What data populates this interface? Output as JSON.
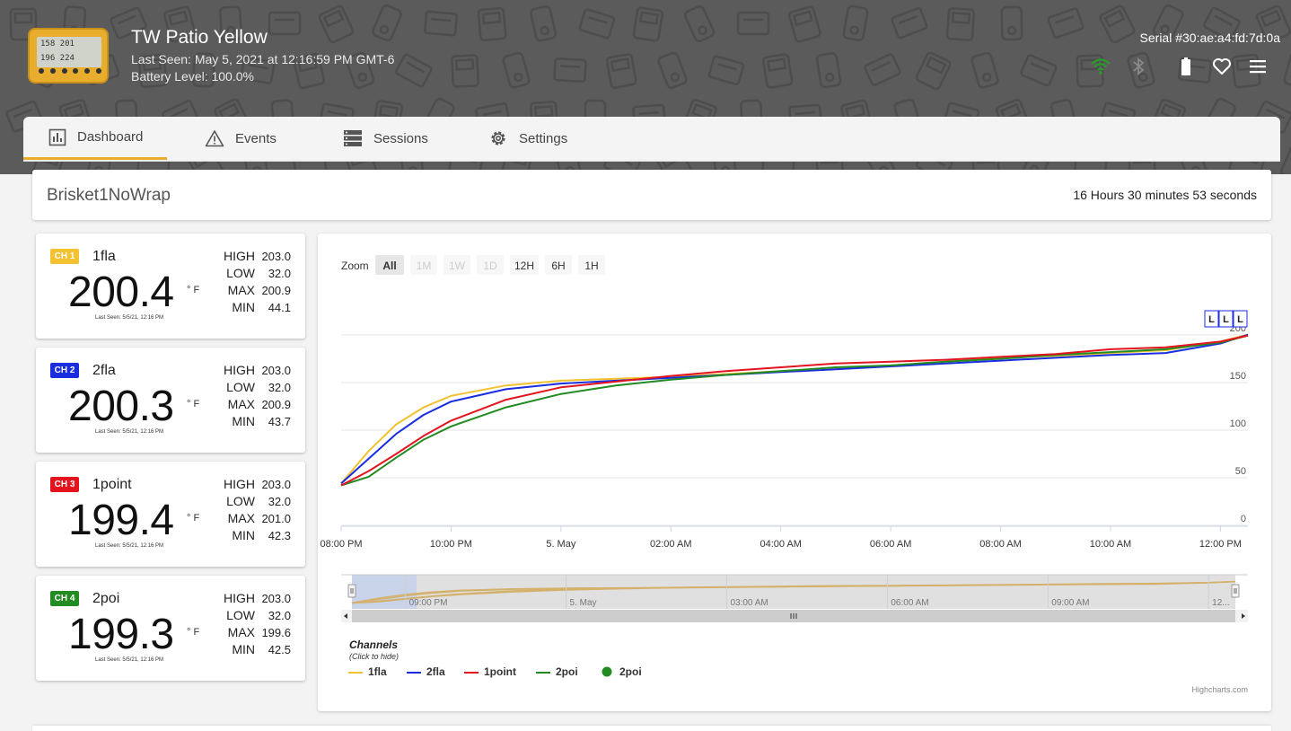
{
  "device": {
    "title": "TW Patio Yellow",
    "last_seen": "Last Seen: May 5, 2021 at 12:16:59 PM GMT-6",
    "battery": "Battery Level: 100.0%",
    "serial": "Serial #30:ae:a4:fd:7d:0a",
    "thumb_lines": [
      "158 201",
      "196 224"
    ]
  },
  "header_icons": [
    "wifi-icon",
    "bluetooth-icon",
    "battery-icon",
    "heart-icon",
    "menu-icon"
  ],
  "tabs": [
    {
      "label": "Dashboard",
      "icon": "bar-chart-icon",
      "active": true
    },
    {
      "label": "Events",
      "icon": "warning-icon",
      "active": false
    },
    {
      "label": "Sessions",
      "icon": "server-icon",
      "active": false
    },
    {
      "label": "Settings",
      "icon": "gear-icon",
      "active": false
    }
  ],
  "session": {
    "name": "Brisket1NoWrap",
    "duration": "16 Hours 30 minutes 53 seconds"
  },
  "channels": [
    {
      "badge": "CH 1",
      "color": "#f2c230",
      "name": "1fla",
      "temp": "200.4",
      "unit": "° F",
      "seen": "Last Seen: 5/5/21, 12:16 PM",
      "high": "203.0",
      "low": "32.0",
      "max": "200.9",
      "min": "44.1"
    },
    {
      "badge": "CH 2",
      "color": "#1a2ee0",
      "name": "2fla",
      "temp": "200.3",
      "unit": "° F",
      "seen": "Last Seen: 5/5/21, 12:16 PM",
      "high": "203.0",
      "low": "32.0",
      "max": "200.9",
      "min": "43.7"
    },
    {
      "badge": "CH 3",
      "color": "#e3141e",
      "name": "1point",
      "temp": "199.4",
      "unit": "° F",
      "seen": "Last Seen: 5/5/21, 12:16 PM",
      "high": "203.0",
      "low": "32.0",
      "max": "201.0",
      "min": "42.3"
    },
    {
      "badge": "CH 4",
      "color": "#228b22",
      "name": "2poi",
      "temp": "199.3",
      "unit": "° F",
      "seen": "Last Seen: 5/5/21, 12:16 PM",
      "high": "203.0",
      "low": "32.0",
      "max": "199.6",
      "min": "42.5"
    }
  ],
  "stat_labels": {
    "high": "HIGH",
    "low": "LOW",
    "max": "MAX",
    "min": "MIN"
  },
  "zoom": {
    "label": "Zoom",
    "buttons": [
      {
        "label": "All",
        "state": "selected"
      },
      {
        "label": "1M",
        "state": "disabled"
      },
      {
        "label": "1W",
        "state": "disabled"
      },
      {
        "label": "1D",
        "state": "disabled"
      },
      {
        "label": "12H",
        "state": "normal"
      },
      {
        "label": "6H",
        "state": "normal"
      },
      {
        "label": "1H",
        "state": "normal"
      }
    ]
  },
  "chart_data": {
    "type": "line",
    "title": "",
    "xlabel": "",
    "ylabel": "",
    "x": [
      0,
      0.5,
      1,
      1.5,
      2,
      3,
      4,
      5,
      6,
      7,
      8,
      9,
      10,
      11,
      12,
      13,
      14,
      15,
      16,
      16.5
    ],
    "xticks": [
      "08:00 PM",
      "10:00 PM",
      "5. May",
      "02:00 AM",
      "04:00 AM",
      "06:00 AM",
      "08:00 AM",
      "10:00 AM",
      "12:00 PM"
    ],
    "xtick_hours": [
      0,
      2,
      4,
      6,
      8,
      10,
      12,
      14,
      16
    ],
    "yticks": [
      "0",
      "50",
      "100",
      "150",
      "200"
    ],
    "ylim": [
      0,
      250
    ],
    "grid": true,
    "series": [
      {
        "name": "1fla",
        "color": "#f2c230",
        "values": [
          44,
          78,
          106,
          124,
          136,
          147,
          152,
          154,
          156,
          159,
          162,
          165,
          168,
          172,
          176,
          178,
          181,
          184,
          193,
          200.4
        ]
      },
      {
        "name": "2fla",
        "color": "#1a2ee0",
        "values": [
          44,
          70,
          96,
          116,
          130,
          143,
          149,
          152,
          155,
          158,
          161,
          164,
          167,
          170,
          173,
          176,
          179,
          181,
          191,
          200.3
        ]
      },
      {
        "name": "1point",
        "color": "#e3141e",
        "values": [
          42,
          57,
          75,
          94,
          110,
          132,
          145,
          151,
          157,
          162,
          166,
          170,
          172,
          174,
          177,
          180,
          185,
          187,
          193,
          199.4
        ]
      },
      {
        "name": "2poi",
        "color": "#228b22",
        "values": [
          42,
          51,
          71,
          90,
          104,
          124,
          138,
          147,
          153,
          158,
          162,
          166,
          168,
          172,
          175,
          179,
          182,
          185,
          192,
          199.3
        ]
      }
    ],
    "flags": [
      "L",
      "L",
      "L"
    ],
    "navigator_ticks": [
      "09:00 PM",
      "5. May",
      "03:00 AM",
      "06:00 AM",
      "09:00 AM",
      "12..."
    ],
    "legend": {
      "placement": "bottom-left",
      "title": "Channels",
      "subtitle": "(Click to hide)"
    }
  },
  "legend_items": [
    {
      "name": "1fla",
      "color": "#f2c230",
      "symbol": "line"
    },
    {
      "name": "2fla",
      "color": "#1a2ee0",
      "symbol": "line"
    },
    {
      "name": "1point",
      "color": "#e3141e",
      "symbol": "line"
    },
    {
      "name": "2poi",
      "color": "#228b22",
      "symbol": "line"
    },
    {
      "name": "2poi",
      "color": "#228b22",
      "symbol": "dot"
    }
  ],
  "credits": "Highcharts.com"
}
